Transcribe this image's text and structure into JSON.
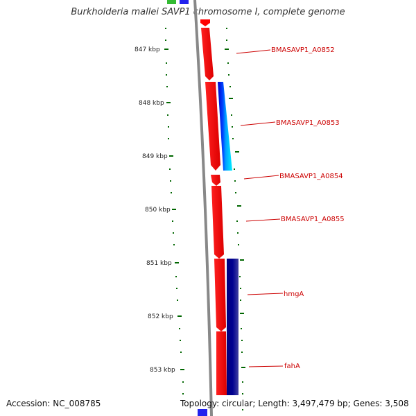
{
  "title": "Burkholderia mallei SAVP1 chromosome I, complete genome",
  "footer": {
    "accession": "Accession: NC_008785",
    "summary": "Topology: circular; Length: 3,497,479 bp; Genes: 3,508"
  },
  "ticks": [
    "847 kbp",
    "848 kbp",
    "849 kbp",
    "850 kbp",
    "851 kbp",
    "852 kbp",
    "853 kbp"
  ],
  "genes": [
    "BMASAVP1_A0852",
    "BMASAVP1_A0853",
    "BMASAVP1_A0854",
    "BMASAVP1_A0855",
    "hmgA",
    "fahA"
  ],
  "colors": {
    "backbone": "#888888",
    "cds": "#ff0000",
    "blast_blue": "#0000cc",
    "blast_cyan": "#00e0ff",
    "blast_navy": "#000080",
    "tick": "#006600",
    "label": "#cc0000"
  }
}
